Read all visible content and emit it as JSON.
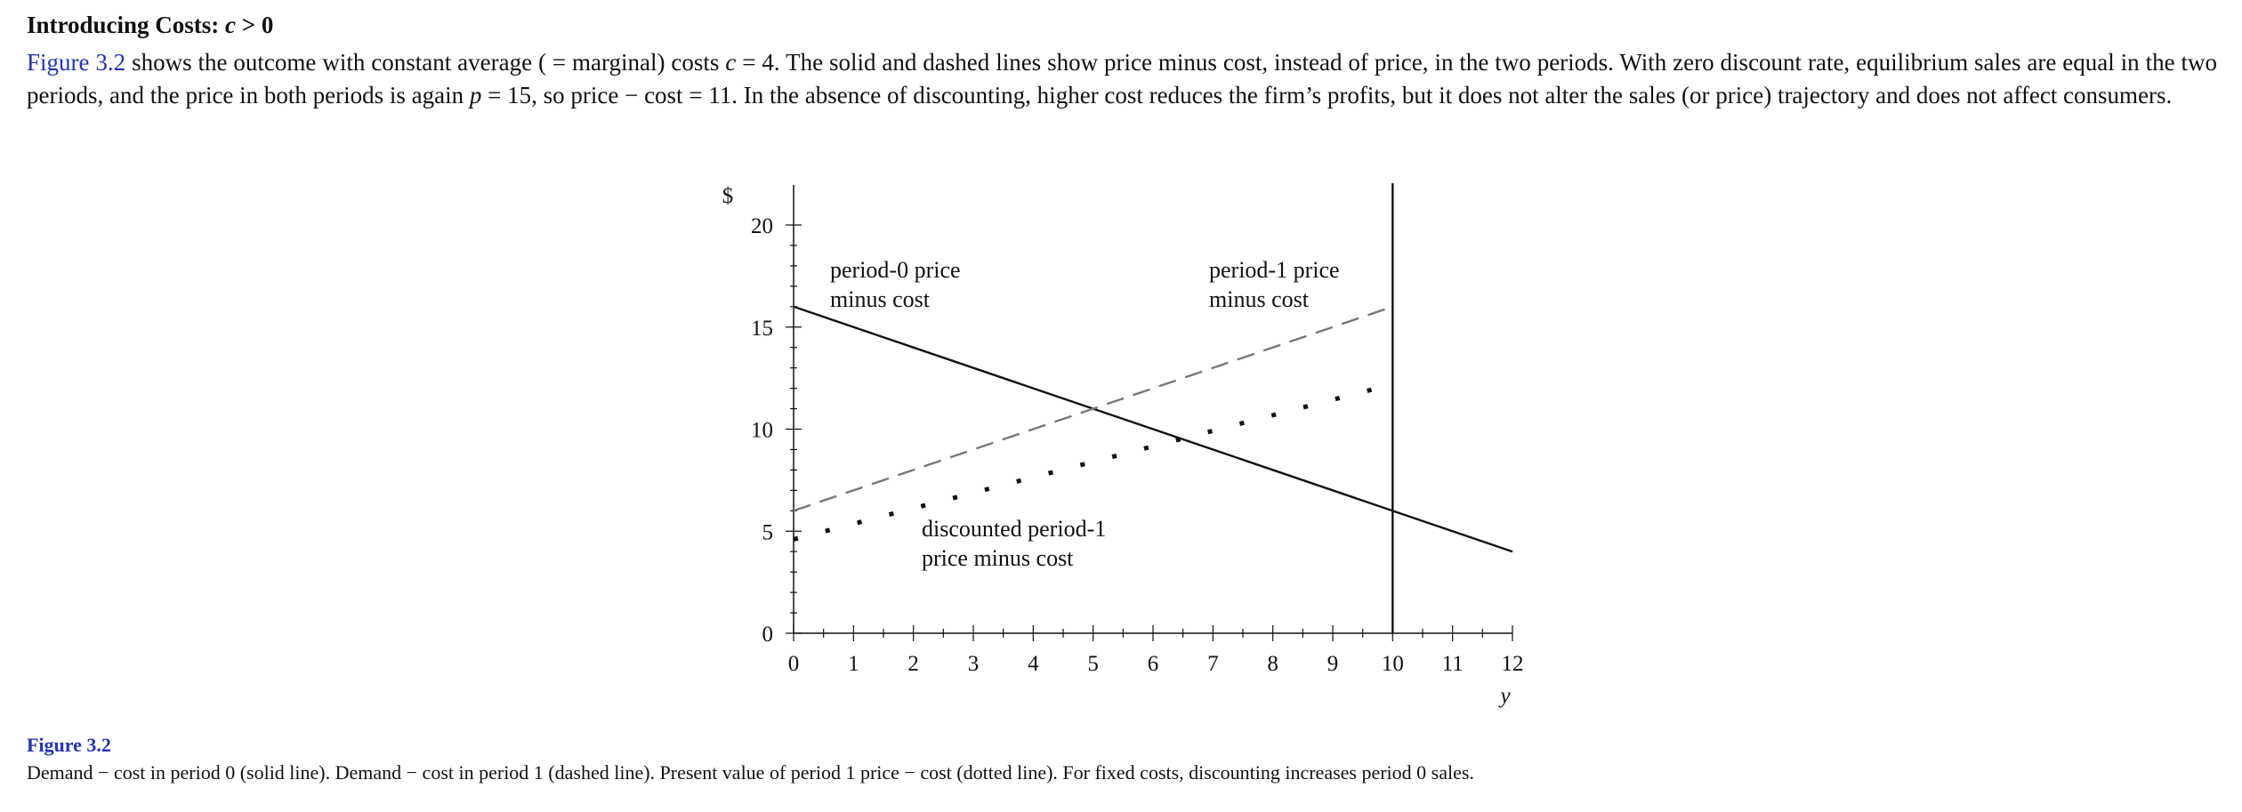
{
  "section": {
    "heading_prefix": "Introducing Costs: ",
    "heading_var": "c",
    "heading_suffix": " > 0"
  },
  "paragraph": {
    "link_text": "Figure 3.2",
    "t1": " shows the outcome with constant average ( = marginal) costs ",
    "v1": "c",
    "t2": " = 4. The solid and dashed lines show price minus cost, instead of price, in the two periods. With zero discount rate, equilibrium sales are equal in the two periods, and the price in both periods is again ",
    "v2": "p",
    "t3": " = 15, so price − cost = 11. In the absence of discounting, higher cost reduces the firm’s profits, but it does not alter the sales (or price) trajectory and does not affect consumers."
  },
  "figure": {
    "label": "Figure 3.2",
    "caption": "Demand − cost in period 0 (solid line). Demand − cost in period 1 (dashed line). Present value of period 1 price − cost (dotted line). For fixed costs, discounting increases period 0 sales."
  },
  "chart_data": {
    "type": "line",
    "title": "",
    "xlabel": "y",
    "ylabel": "$",
    "xlim": [
      0,
      12
    ],
    "ylim": [
      0,
      20
    ],
    "x_ticks": [
      "0",
      "1",
      "2",
      "3",
      "4",
      "5",
      "6",
      "7",
      "8",
      "9",
      "10",
      "11",
      "12"
    ],
    "y_ticks": [
      "0",
      "5",
      "10",
      "15",
      "20"
    ],
    "vertical_line_x": 10,
    "series": [
      {
        "label_lines": [
          "period-0 price",
          "minus cost"
        ],
        "style": "solid",
        "color": "#111111",
        "x": [
          0,
          12
        ],
        "y": [
          16,
          4
        ]
      },
      {
        "label_lines": [
          "period-1 price",
          "minus cost"
        ],
        "style": "dashed",
        "color": "#777777",
        "x": [
          0,
          10
        ],
        "y": [
          6,
          16
        ]
      },
      {
        "label_lines": [
          "discounted period-1",
          "price minus cost"
        ],
        "style": "dotted",
        "color": "#111111",
        "x": [
          0,
          10
        ],
        "y": [
          4.6,
          12.2
        ]
      }
    ]
  }
}
